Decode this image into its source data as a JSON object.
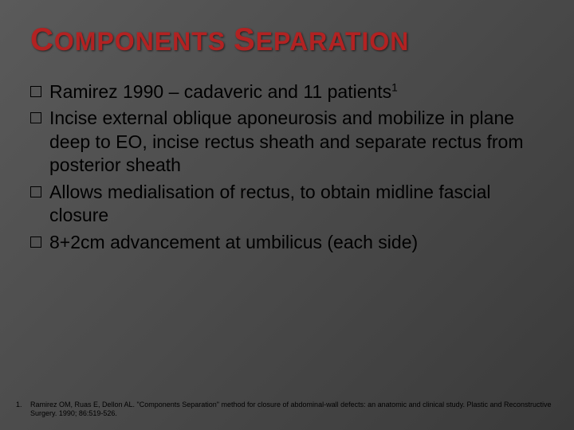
{
  "title": {
    "cap1": "C",
    "word1_rest": "OMPONENTS",
    "cap2": "S",
    "word2_rest": "EPARATION",
    "color": "#b22222",
    "cap_fontsize": 40,
    "rest_fontsize": 32,
    "font_weight": "bold"
  },
  "bullets": [
    {
      "text": "Ramirez 1990 – cadaveric and 11 patients",
      "sup": "1"
    },
    {
      "text": "Incise external oblique aponeurosis and mobilize in plane deep to EO, incise rectus sheath and separate rectus from posterior sheath"
    },
    {
      "text": "Allows medialisation of rectus, to obtain midline fascial closure"
    },
    {
      "text": "8+2cm advancement at umbilicus (each side)"
    }
  ],
  "body_style": {
    "fontsize": 23,
    "color": "#000000",
    "bullet_marker": "hollow-square"
  },
  "footnotes": [
    {
      "num": "1.",
      "text": "Ramirez OM, Ruas E, Dellon AL. \"Components Separation\" method for closure of abdominal-wall defects: an anatomic and clinical study. Plastic and Reconstructive Surgery. 1990; 86:519-526."
    }
  ],
  "footnote_style": {
    "fontsize": 9,
    "color": "#000000"
  },
  "background": {
    "gradient_from": "#5a5a5a",
    "gradient_mid": "#4a4a4a",
    "gradient_to": "#3a3a3a"
  }
}
